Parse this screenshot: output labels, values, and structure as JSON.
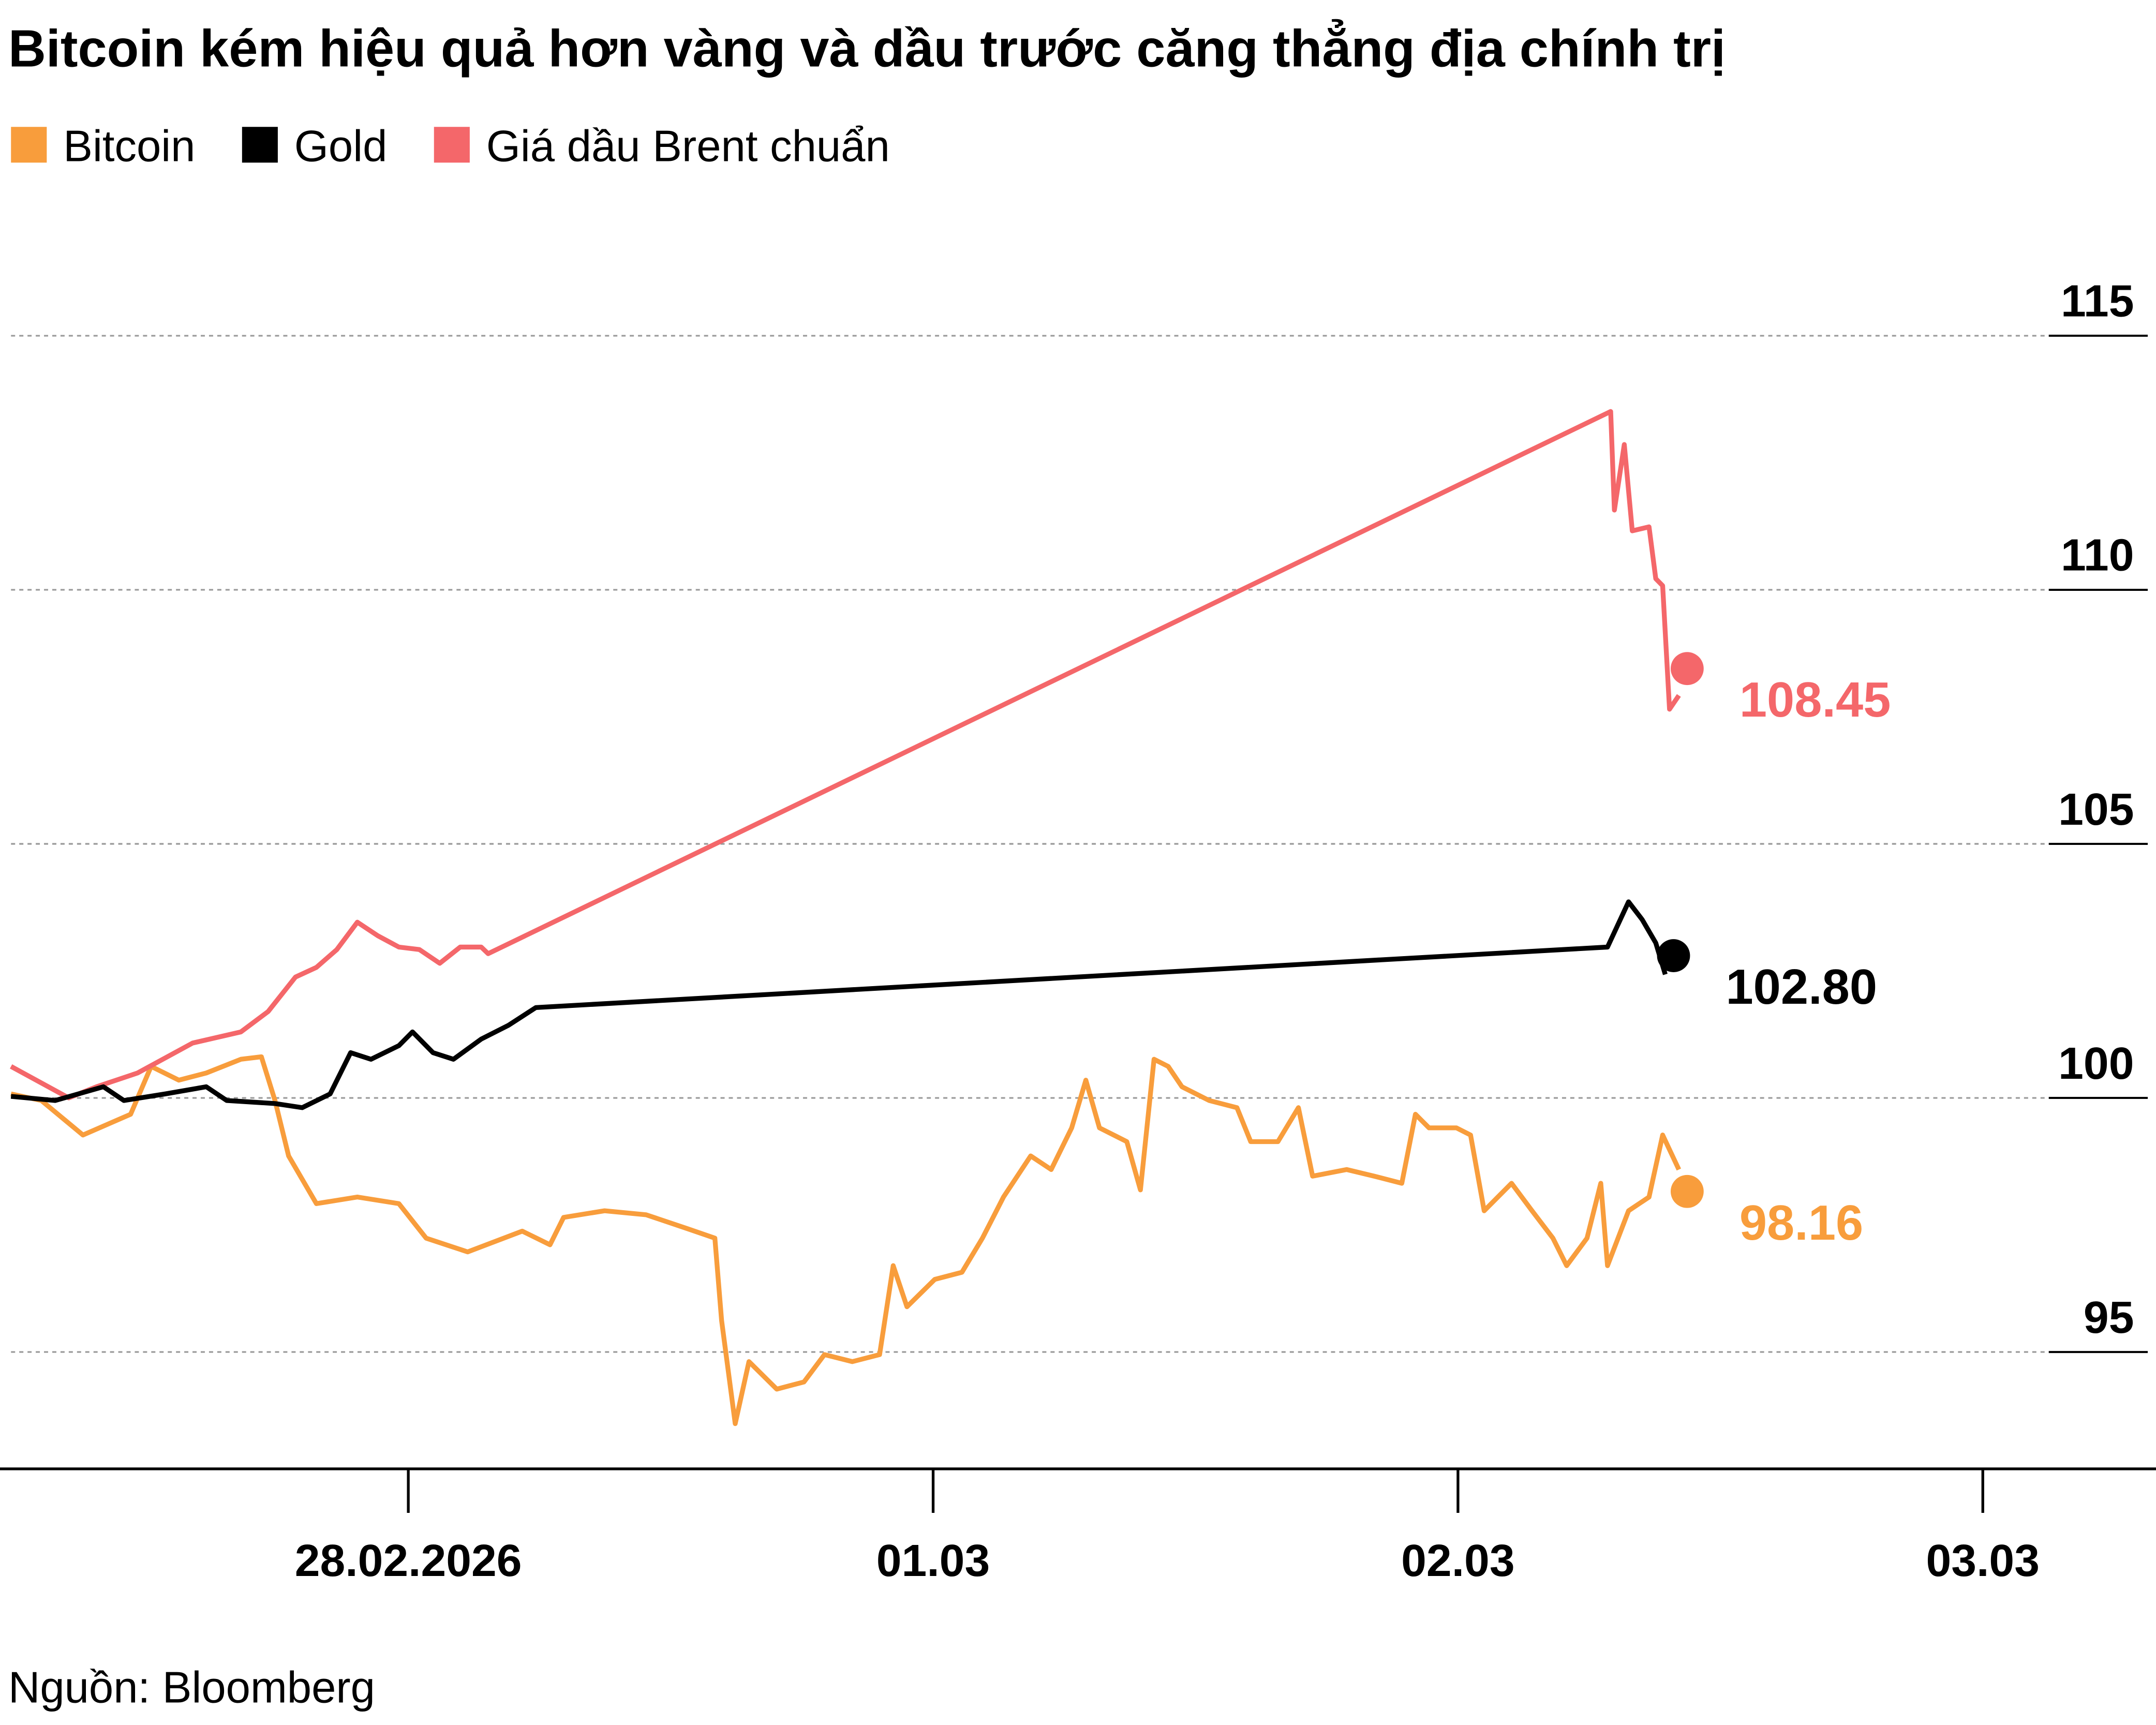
{
  "chart_data": {
    "type": "line",
    "title": "Bitcoin kém hiệu quả hơn vàng và dầu trước căng thẳng địa chính trị",
    "source": "Nguồn: Bloomberg",
    "xlim": [
      -0.757,
      3.33
    ],
    "xticks": [
      {
        "value": 0,
        "label": "28.02.2026"
      },
      {
        "value": 1,
        "label": "01.03"
      },
      {
        "value": 2,
        "label": "02.03"
      },
      {
        "value": 3,
        "label": "03.03"
      }
    ],
    "ylim": [
      92.7,
      117
    ],
    "yticks": [
      95,
      100,
      105,
      110,
      115
    ],
    "grid": true,
    "series": [
      {
        "name": "Bitcoin",
        "color": "#f89d3c",
        "end_value": 98.16,
        "end_label": "98.16",
        "x": [
          -0.757,
          -0.699,
          -0.62,
          -0.529,
          -0.49,
          -0.437,
          -0.385,
          -0.319,
          -0.28,
          -0.254,
          -0.228,
          -0.175,
          -0.097,
          -0.018,
          0.034,
          0.113,
          0.217,
          0.27,
          0.296,
          0.374,
          0.453,
          0.531,
          0.584,
          0.597,
          0.623,
          0.649,
          0.702,
          0.754,
          0.793,
          0.846,
          0.898,
          0.924,
          0.95,
          1.003,
          1.055,
          1.094,
          1.134,
          1.186,
          1.225,
          1.264,
          1.291,
          1.317,
          1.369,
          1.395,
          1.421,
          1.448,
          1.474,
          1.526,
          1.579,
          1.605,
          1.657,
          1.696,
          1.723,
          1.788,
          1.84,
          1.893,
          1.919,
          1.945,
          1.997,
          2.024,
          2.05,
          2.102,
          2.141,
          2.181,
          2.207,
          2.246,
          2.272,
          2.285,
          2.325,
          2.364,
          2.39,
          2.421
        ],
        "values": [
          100.08,
          99.95,
          99.27,
          99.68,
          100.62,
          100.35,
          100.49,
          100.76,
          100.81,
          99.95,
          98.86,
          97.92,
          98.05,
          97.92,
          97.24,
          96.97,
          97.38,
          97.11,
          97.65,
          97.78,
          97.7,
          97.43,
          97.24,
          95.62,
          93.59,
          94.81,
          94.27,
          94.41,
          94.95,
          94.81,
          94.95,
          96.7,
          95.89,
          96.43,
          96.57,
          97.24,
          98.05,
          98.86,
          98.59,
          99.41,
          100.35,
          99.41,
          99.14,
          98.19,
          100.76,
          100.62,
          100.22,
          99.95,
          99.81,
          99.14,
          99.14,
          99.81,
          98.46,
          98.59,
          98.46,
          98.32,
          99.68,
          99.41,
          99.41,
          99.27,
          97.78,
          98.32,
          97.78,
          97.24,
          96.7,
          97.24,
          98.32,
          96.7,
          97.78,
          98.05,
          99.27,
          98.59
        ]
      },
      {
        "name": "Gold",
        "color": "#000000",
        "end_value": 102.8,
        "end_label": "102.80",
        "x": [
          -0.757,
          -0.673,
          -0.581,
          -0.542,
          -0.463,
          -0.385,
          -0.346,
          -0.254,
          -0.202,
          -0.149,
          -0.11,
          -0.071,
          -0.018,
          0.008,
          0.047,
          0.086,
          0.139,
          0.191,
          0.243,
          2.285,
          2.325,
          2.351,
          2.377,
          2.395
        ],
        "values": [
          100.03,
          99.95,
          100.22,
          99.95,
          100.08,
          100.22,
          99.95,
          99.89,
          99.81,
          100.08,
          100.89,
          100.76,
          101.03,
          101.3,
          100.89,
          100.76,
          101.16,
          101.43,
          101.78,
          102.97,
          103.86,
          103.51,
          103.05,
          102.43
        ]
      },
      {
        "name": "Giá dầu Brent chuẩn",
        "color": "#f4676a",
        "end_value": 108.45,
        "end_label": "108.45",
        "x": [
          -0.757,
          -0.647,
          -0.594,
          -0.516,
          -0.411,
          -0.319,
          -0.267,
          -0.215,
          -0.175,
          -0.136,
          -0.097,
          -0.058,
          -0.018,
          0.021,
          0.06,
          0.099,
          0.139,
          0.152,
          2.291,
          2.298,
          2.317,
          2.332,
          2.364,
          2.377,
          2.39,
          2.403,
          2.421
        ],
        "values": [
          100.62,
          100.0,
          100.22,
          100.49,
          101.08,
          101.3,
          101.7,
          102.38,
          102.57,
          102.92,
          103.46,
          103.19,
          102.97,
          102.92,
          102.65,
          102.97,
          102.97,
          102.84,
          113.51,
          111.57,
          112.86,
          111.16,
          111.24,
          110.22,
          110.08,
          107.65,
          107.92
        ]
      }
    ]
  }
}
